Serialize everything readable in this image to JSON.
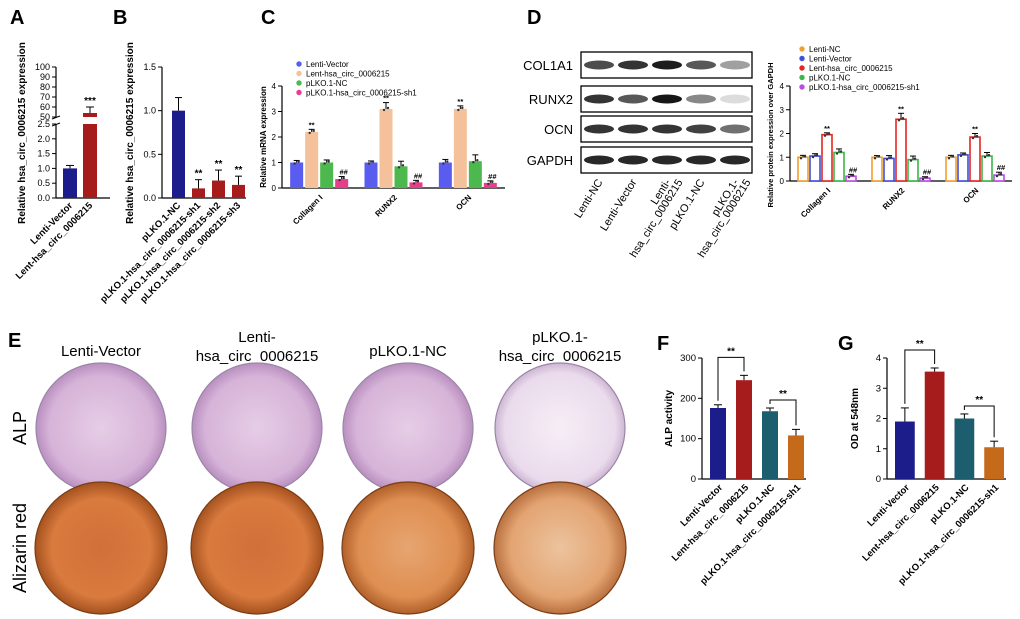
{
  "colors": {
    "navy": "#1c1c8a",
    "darkred": "#a61b1b",
    "teal": "#1d5e6e",
    "orange": "#c46a1a",
    "blue": "#5a5cf0",
    "salmon": "#f4c19a",
    "green": "#4db84d",
    "pink": "#e83c8c",
    "purple": "#b35ce0",
    "o_orange": "#f0a030",
    "o_blue": "#3f4fd8",
    "o_red": "#e52620",
    "o_green": "#3cb54a",
    "o_purple": "#b94ee0"
  },
  "panels": {
    "A": "A",
    "B": "B",
    "C": "C",
    "D": "D",
    "E": "E",
    "F": "F",
    "G": "G"
  },
  "chart_data": [
    {
      "id": "A",
      "type": "bar",
      "ylabel": "Relative hsa_circ_0006215 expression",
      "categories": [
        "Lenti-Vector",
        "Lent-hsa_circ_0006215"
      ],
      "values": [
        1.0,
        54
      ],
      "errors": [
        0.1,
        6
      ],
      "axis_break": true,
      "ticks_lower": [
        "0.0",
        "0.5",
        "1.0",
        "1.5",
        "2.0",
        "2.5"
      ],
      "ticks_upper": [
        "50",
        "60",
        "70",
        "80",
        "90",
        "100"
      ],
      "annotations": [
        "",
        "***"
      ]
    },
    {
      "id": "B",
      "type": "bar",
      "ylabel": "Relative hsa_circ_0006215 expression",
      "categories": [
        "pLKO.1-NC",
        "pLKO.1-hsa_circ_0006215-sh1",
        "pLKO.1-hsa_circ_0006215-sh2",
        "pLKO.1-hsa_circ_0006215-sh3"
      ],
      "values": [
        1.0,
        0.11,
        0.2,
        0.15
      ],
      "errors": [
        0.15,
        0.1,
        0.12,
        0.1
      ],
      "ylim": [
        0,
        1.5
      ],
      "ticks": [
        "0.0",
        "0.5",
        "1.0",
        "1.5"
      ],
      "annotations": [
        "",
        "**",
        "**",
        "**"
      ]
    },
    {
      "id": "C",
      "type": "bar",
      "ylabel": "Relative mRNA expression",
      "groups": [
        "Collagen I",
        "RUNX2",
        "OCN"
      ],
      "legend": [
        "Lenti-Vector",
        "Lent-hsa_circ_0006215",
        "pLKO.1-NC",
        "pLKO.1-hsa_circ_0006215-sh1"
      ],
      "series": [
        {
          "name": "Lenti-Vector",
          "values": [
            1.0,
            1.0,
            1.0
          ],
          "errors": [
            0.08,
            0.06,
            0.12
          ]
        },
        {
          "name": "Lent-hsa_circ_0006215",
          "values": [
            2.2,
            3.1,
            3.1
          ],
          "errors": [
            0.1,
            0.25,
            0.12
          ]
        },
        {
          "name": "pLKO.1-NC",
          "values": [
            1.0,
            0.85,
            1.05
          ],
          "errors": [
            0.1,
            0.2,
            0.25
          ]
        },
        {
          "name": "pLKO.1-hsa_circ_0006215-sh1",
          "values": [
            0.35,
            0.22,
            0.2
          ],
          "errors": [
            0.1,
            0.08,
            0.08
          ]
        }
      ],
      "ylim": [
        0,
        4
      ],
      "ticks": [
        "0",
        "1",
        "2",
        "3",
        "4"
      ],
      "annotations": {
        "up": "**",
        "down": "##"
      }
    },
    {
      "id": "D",
      "type": "bar",
      "ylabel": "Relative protein expression over GAPDH",
      "groups": [
        "Collagen I",
        "RUNX2",
        "OCN"
      ],
      "legend": [
        "Lenti-NC",
        "Lenti-Vector",
        "Lent-hsa_circ_0006215",
        "pLKO.1-NC",
        "pLKO.1-hsa_circ_0006215-sh1"
      ],
      "series": [
        {
          "name": "Lenti-NC",
          "values": [
            1.0,
            1.0,
            1.0
          ],
          "errors": [
            0.08,
            0.07,
            0.08
          ]
        },
        {
          "name": "Lenti-Vector",
          "values": [
            1.05,
            0.95,
            1.1
          ],
          "errors": [
            0.1,
            0.12,
            0.08
          ]
        },
        {
          "name": "Lent-hsa_circ_0006215",
          "values": [
            1.95,
            2.6,
            1.85
          ],
          "errors": [
            0.08,
            0.25,
            0.15
          ]
        },
        {
          "name": "pLKO.1-NC",
          "values": [
            1.2,
            0.9,
            1.05
          ],
          "errors": [
            0.15,
            0.15,
            0.15
          ]
        },
        {
          "name": "pLKO.1-hsa_circ_0006215-sh1",
          "values": [
            0.2,
            0.12,
            0.25
          ],
          "errors": [
            0.08,
            0.06,
            0.12
          ]
        }
      ],
      "ylim": [
        0,
        4
      ],
      "ticks": [
        "0",
        "1",
        "2",
        "3",
        "4"
      ],
      "annotations": {
        "up": "**",
        "down": "##"
      }
    },
    {
      "id": "F",
      "type": "bar",
      "ylabel": "ALP activity",
      "categories": [
        "Lenti-Vector",
        "Lent-hsa_circ_0006215",
        "pLKO.1-NC",
        "pLKO.1-hsa_circ_0006215-sh1"
      ],
      "values": [
        176,
        245,
        168,
        108
      ],
      "errors": [
        8,
        12,
        8,
        15
      ],
      "ylim": [
        0,
        300
      ],
      "ticks": [
        "0",
        "100",
        "200",
        "300"
      ],
      "annotations": [
        "**",
        "**"
      ]
    },
    {
      "id": "G",
      "type": "bar",
      "ylabel": "OD at 548nm",
      "categories": [
        "Lenti-Vector",
        "Lent-hsa_circ_0006215",
        "pLKO.1-NC",
        "pLKO.1-hsa_circ_0006215-sh1"
      ],
      "values": [
        1.9,
        3.55,
        2.0,
        1.05
      ],
      "errors": [
        0.45,
        0.12,
        0.15,
        0.2
      ],
      "ylim": [
        0,
        4
      ],
      "ticks": [
        "0",
        "1",
        "2",
        "3",
        "4"
      ],
      "annotations": [
        "**",
        "**"
      ]
    }
  ],
  "blot": {
    "rows": [
      "COL1A1",
      "RUNX2",
      "OCN",
      "GAPDH"
    ],
    "lanes": [
      "Lenti-NC",
      "Lenti-Vector",
      "Lenti-\nhsa_circ_0006215",
      "pLKO.1-NC",
      "pLKO.1-\nhsa_circ_0006215"
    ]
  },
  "staining": {
    "columns": [
      "Lenti-Vector",
      "Lenti-\nhsa_circ_0006215",
      "pLKO.1-NC",
      "pLKO.1-\nhsa_circ_0006215"
    ],
    "rows": [
      "ALP",
      "Alizarin red"
    ]
  }
}
